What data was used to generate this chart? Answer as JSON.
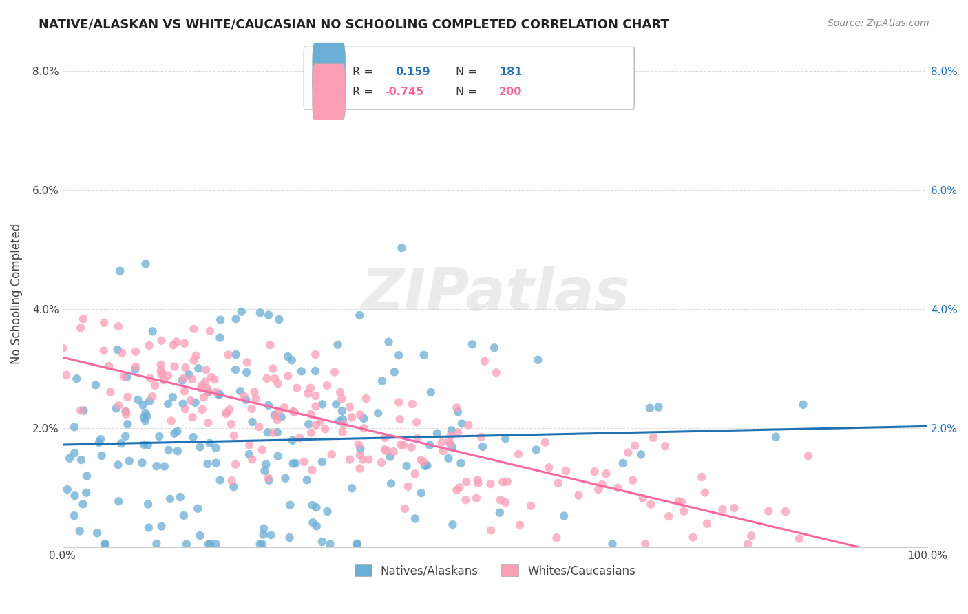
{
  "title": "NATIVE/ALASKAN VS WHITE/CAUCASIAN NO SCHOOLING COMPLETED CORRELATION CHART",
  "source": "Source: ZipAtlas.com",
  "ylabel": "No Schooling Completed",
  "xlabel_ticks": [
    "0.0%",
    "100.0%"
  ],
  "ylabel_ticks": [
    "2.0%",
    "4.0%",
    "6.0%",
    "8.0%"
  ],
  "blue_R": 0.159,
  "blue_N": 181,
  "pink_R": -0.745,
  "pink_N": 200,
  "blue_color": "#6baed6",
  "pink_color": "#fa9fb5",
  "blue_line_color": "#2171b5",
  "pink_line_color": "#f768a1",
  "xlim": [
    0.0,
    100.0
  ],
  "ylim": [
    0.0,
    8.5
  ],
  "watermark": "ZIPatlas",
  "legend_R_blue": "R =   0.159",
  "legend_N_blue": "N =  181",
  "legend_R_pink": "R = -0.745",
  "legend_N_pink": "N =  200",
  "background_color": "#ffffff",
  "grid_color": "#dddddd"
}
